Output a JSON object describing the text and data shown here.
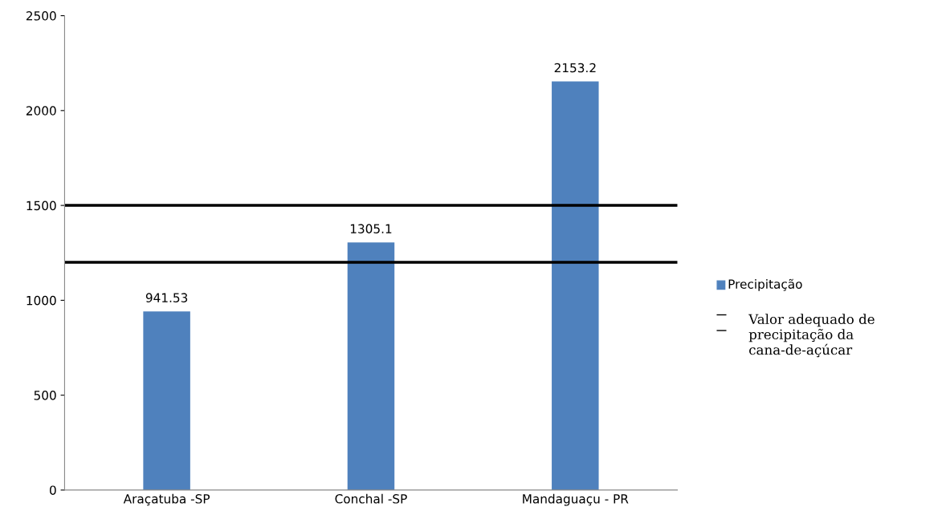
{
  "chart_data": {
    "type": "bar",
    "categories": [
      "Araçatuba -SP",
      "Conchal -SP",
      "Mandaguaçu - PR"
    ],
    "series": [
      {
        "name": "Precipitação",
        "color": "#4f81bd",
        "values": [
          941.53,
          1305.1,
          2153.2
        ]
      }
    ],
    "data_labels": true,
    "ylim": [
      0,
      2500
    ],
    "yticks": [
      0,
      500,
      1000,
      1500,
      2000,
      2500
    ],
    "grid": false,
    "legend": "right",
    "ref_lines": [
      {
        "axis": "y",
        "value": 1500,
        "label": "Valor adequado de precipitação da cana-de-açúcar",
        "color": "#000000",
        "line_style": "solid"
      },
      {
        "axis": "y",
        "value": 1200,
        "color": "#000000",
        "line_style": "solid"
      }
    ]
  }
}
